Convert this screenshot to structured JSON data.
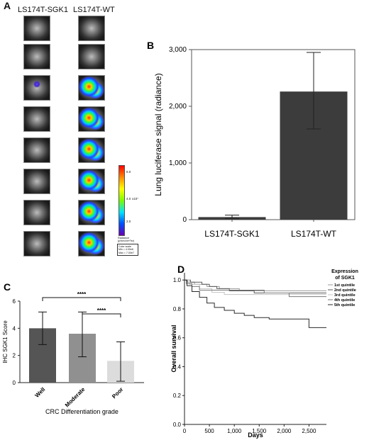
{
  "panel_a": {
    "letter": "A",
    "col_left": "LS174T-SGK1",
    "col_right": "LS174T-WT",
    "colorbar_title": "Color scale",
    "colorbar_ticks": [
      "6.0",
      "4.0",
      "2.0"
    ],
    "colorbar_exponent": "x10⁷",
    "colorbar_units": [
      "Radiance",
      "(p/sec/cm²/sr)"
    ],
    "colorbar_minmax": [
      "Min = 4.00e6",
      "Max = 7.00e7"
    ]
  },
  "chart_data": [
    {
      "id": "B",
      "type": "bar",
      "letter": "B",
      "categories": [
        "LS174T-SGK1",
        "LS174T-WT"
      ],
      "values": [
        45,
        2260
      ],
      "error_low": [
        25,
        1600
      ],
      "error_high": [
        80,
        2950
      ],
      "ylabel": "Lung luciferase signal (radiance)",
      "yticks": [
        "0",
        "1,000",
        "2,000",
        "3,000"
      ],
      "ylim": [
        0,
        3000
      ],
      "colors": [
        "#3c3c3c",
        "#3c3c3c"
      ],
      "grid": false
    },
    {
      "id": "C",
      "type": "bar",
      "letter": "C",
      "categories": [
        "Well",
        "Moderate",
        "Poor"
      ],
      "values": [
        4.0,
        3.6,
        1.6
      ],
      "error_low": [
        2.8,
        1.9,
        0.1
      ],
      "error_high": [
        5.2,
        5.2,
        3.0
      ],
      "colors": [
        "#555555",
        "#909090",
        "#dcdcdc"
      ],
      "ylabel": "IHC SGK1 Score",
      "xlabel": "CRC Differentiation grade",
      "yticks": [
        "0",
        "2",
        "4",
        "6"
      ],
      "ylim": [
        0,
        6
      ],
      "significance": [
        {
          "label": "****",
          "from": "Well",
          "to": "Poor"
        },
        {
          "label": "****",
          "from": "Moderate",
          "to": "Poor"
        }
      ],
      "grid": false
    },
    {
      "id": "D",
      "type": "line",
      "letter": "D",
      "xlabel": "Days",
      "ylabel": "Overall survival",
      "xticks": [
        "0",
        "500",
        "1,000",
        "1,500",
        "2,000",
        "2,500"
      ],
      "yticks": [
        "0.0",
        "0.2",
        "0.4",
        "0.6",
        "0.8",
        "1.0"
      ],
      "xlim": [
        0,
        2850
      ],
      "ylim": [
        0,
        1.05
      ],
      "legend_title": [
        "Expression",
        "of SGK1"
      ],
      "legend_position": "top-right",
      "grid": false,
      "series": [
        {
          "name": "1st quintile",
          "color": "#9a9a9a",
          "points": [
            [
              0,
              1.0
            ],
            [
              60,
              1.0
            ],
            [
              60,
              0.985
            ],
            [
              200,
              0.985
            ],
            [
              200,
              0.97
            ],
            [
              450,
              0.97
            ],
            [
              450,
              0.955
            ],
            [
              700,
              0.955
            ],
            [
              700,
              0.94
            ],
            [
              1100,
              0.94
            ],
            [
              1100,
              0.925
            ],
            [
              2850,
              0.925
            ]
          ]
        },
        {
          "name": "2nd quintile",
          "color": "#5a5a5a",
          "points": [
            [
              0,
              1.0
            ],
            [
              120,
              1.0
            ],
            [
              120,
              0.985
            ],
            [
              350,
              0.985
            ],
            [
              350,
              0.97
            ],
            [
              500,
              0.97
            ],
            [
              500,
              0.955
            ],
            [
              650,
              0.955
            ],
            [
              650,
              0.94
            ],
            [
              900,
              0.94
            ],
            [
              900,
              0.925
            ],
            [
              1400,
              0.925
            ],
            [
              1400,
              0.91
            ],
            [
              2850,
              0.91
            ]
          ]
        },
        {
          "name": "3rd quintile",
          "color": "#c4c4c4",
          "points": [
            [
              0,
              1.0
            ],
            [
              100,
              1.0
            ],
            [
              100,
              0.97
            ],
            [
              300,
              0.97
            ],
            [
              300,
              0.94
            ],
            [
              550,
              0.94
            ],
            [
              550,
              0.915
            ],
            [
              800,
              0.915
            ],
            [
              800,
              0.9
            ],
            [
              2850,
              0.9
            ]
          ]
        },
        {
          "name": "4th quintile",
          "color": "#7a7a7a",
          "points": [
            [
              0,
              1.0
            ],
            [
              40,
              1.0
            ],
            [
              40,
              0.975
            ],
            [
              150,
              0.975
            ],
            [
              150,
              0.955
            ],
            [
              300,
              0.955
            ],
            [
              300,
              0.93
            ],
            [
              1600,
              0.93
            ],
            [
              1600,
              0.91
            ],
            [
              2100,
              0.91
            ],
            [
              2100,
              0.885
            ],
            [
              2850,
              0.885
            ]
          ]
        },
        {
          "name": "5th quintile",
          "color": "#2a2a2a",
          "points": [
            [
              0,
              1.0
            ],
            [
              50,
              1.0
            ],
            [
              50,
              0.96
            ],
            [
              150,
              0.96
            ],
            [
              150,
              0.92
            ],
            [
              300,
              0.92
            ],
            [
              300,
              0.88
            ],
            [
              450,
              0.88
            ],
            [
              450,
              0.84
            ],
            [
              600,
              0.84
            ],
            [
              600,
              0.81
            ],
            [
              800,
              0.81
            ],
            [
              800,
              0.79
            ],
            [
              1000,
              0.79
            ],
            [
              1000,
              0.77
            ],
            [
              1200,
              0.77
            ],
            [
              1200,
              0.755
            ],
            [
              1400,
              0.755
            ],
            [
              1400,
              0.74
            ],
            [
              1700,
              0.74
            ],
            [
              1700,
              0.73
            ],
            [
              2500,
              0.73
            ],
            [
              2500,
              0.67
            ],
            [
              2850,
              0.67
            ]
          ]
        }
      ]
    }
  ]
}
